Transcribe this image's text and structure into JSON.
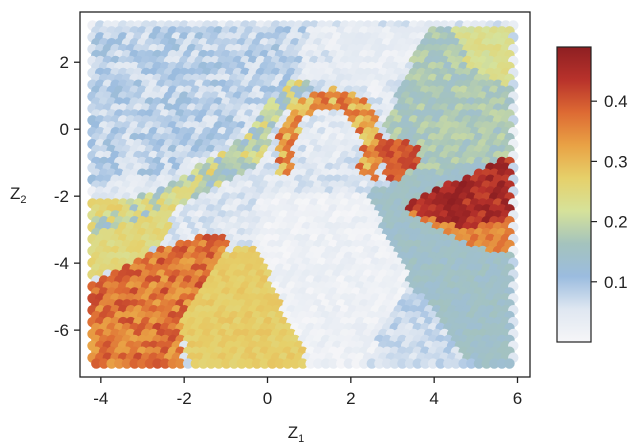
{
  "chart_data": {
    "type": "heatmap",
    "xlabel": "Z",
    "xlabel_sub": "1",
    "ylabel": "Z",
    "ylabel_sub": "2",
    "xlim": [
      -4.5,
      6.3
    ],
    "ylim": [
      -7.4,
      3.5
    ],
    "xticks": [
      -4,
      -2,
      0,
      2,
      4,
      6
    ],
    "yticks": [
      2,
      0,
      -2,
      -4,
      -6
    ],
    "grid": false,
    "grid_extent": {
      "x": [
        -4.2,
        5.9
      ],
      "y": [
        -7.0,
        3.1
      ]
    },
    "colorbar": {
      "range": [
        0.0,
        0.49
      ],
      "ticks": [
        0.1,
        0.2,
        0.3,
        0.4
      ],
      "colors": [
        "#f6f6f8",
        "#dfe7f1",
        "#9bbcdf",
        "#a4c3bd",
        "#d6e29a",
        "#e6d06a",
        "#e9a245",
        "#dd6a33",
        "#b8322b",
        "#8e1f22"
      ]
    },
    "regions": [
      {
        "name": "top-left",
        "poly": [
          [
            -4.2,
            3.1
          ],
          [
            1.0,
            3.1
          ],
          [
            0.6,
            1.0
          ],
          [
            -0.5,
            0.0
          ],
          [
            -1.5,
            -0.8
          ],
          [
            -2.5,
            -1.4
          ],
          [
            -4.2,
            -1.6
          ]
        ],
        "value": 0.08,
        "noise": 0.04
      },
      {
        "name": "top-right",
        "poly": [
          [
            1.0,
            3.1
          ],
          [
            4.0,
            3.1
          ],
          [
            3.2,
            1.8
          ],
          [
            2.6,
            0.9
          ],
          [
            1.9,
            1.6
          ]
        ],
        "value": 0.03,
        "noise": 0.02
      },
      {
        "name": "right-upper",
        "poly": [
          [
            4.0,
            3.1
          ],
          [
            5.9,
            3.1
          ],
          [
            5.9,
            -1.2
          ],
          [
            4.5,
            -1.7
          ],
          [
            3.4,
            -1.9
          ],
          [
            2.8,
            0.0
          ],
          [
            3.4,
            1.8
          ]
        ],
        "value": 0.17,
        "noise": 0.03
      },
      {
        "name": "upper-right-yellow",
        "poly": [
          [
            4.3,
            3.1
          ],
          [
            5.9,
            3.1
          ],
          [
            5.9,
            1.2
          ],
          [
            4.9,
            1.8
          ]
        ],
        "value": 0.23,
        "noise": 0.02
      },
      {
        "name": "right-middle",
        "poly": [
          [
            2.3,
            -1.9
          ],
          [
            5.9,
            -0.8
          ],
          [
            5.9,
            -7.0
          ],
          [
            4.9,
            -7.0
          ],
          [
            4.1,
            -5.8
          ],
          [
            3.2,
            -4.2
          ],
          [
            2.6,
            -3.0
          ]
        ],
        "value": 0.145,
        "noise": 0.015
      },
      {
        "name": "center-white",
        "poly": [
          [
            -0.2,
            -2.0
          ],
          [
            2.4,
            -2.0
          ],
          [
            2.8,
            -3.0
          ],
          [
            3.4,
            -4.5
          ],
          [
            2.4,
            -7.0
          ],
          [
            1.0,
            -7.0
          ],
          [
            0.3,
            -5.2
          ],
          [
            -0.3,
            -3.5
          ]
        ],
        "value": 0.02,
        "noise": 0.02
      },
      {
        "name": "lower-right-blue",
        "poly": [
          [
            3.4,
            -4.5
          ],
          [
            4.1,
            -5.8
          ],
          [
            4.9,
            -7.0
          ],
          [
            2.4,
            -7.0
          ]
        ],
        "value": 0.07,
        "noise": 0.03
      },
      {
        "name": "bottom-center-yellow",
        "poly": [
          [
            -0.8,
            -3.5
          ],
          [
            -0.2,
            -3.5
          ],
          [
            0.3,
            -5.2
          ],
          [
            1.0,
            -7.0
          ],
          [
            -1.9,
            -7.0
          ],
          [
            -2.1,
            -5.6
          ]
        ],
        "value": 0.275,
        "noise": 0.015
      },
      {
        "name": "left-yellow",
        "poly": [
          [
            -4.2,
            -2.2
          ],
          [
            -2.2,
            -2.2
          ],
          [
            -2.4,
            -3.2
          ],
          [
            -3.3,
            -4.2
          ],
          [
            -4.2,
            -4.4
          ]
        ],
        "value": 0.25,
        "noise": 0.02
      },
      {
        "name": "left-orange",
        "poly": [
          [
            -4.2,
            -4.6
          ],
          [
            -2.6,
            -3.6
          ],
          [
            -1.5,
            -3.2
          ],
          [
            -0.9,
            -3.3
          ],
          [
            -2.0,
            -5.6
          ],
          [
            -2.0,
            -7.0
          ],
          [
            -4.2,
            -7.0
          ]
        ],
        "value": 0.37,
        "noise": 0.05
      },
      {
        "name": "left-band",
        "poly": [
          [
            -4.2,
            -3.2
          ],
          [
            -1.5,
            -2.0
          ],
          [
            -0.3,
            -1.2
          ],
          [
            0.4,
            0.4
          ],
          [
            1.2,
            1.3
          ],
          [
            0.5,
            1.4
          ],
          [
            -0.7,
            -0.4
          ],
          [
            -2.2,
            -1.6
          ],
          [
            -4.2,
            -2.6
          ]
        ],
        "value": 0.2,
        "noise": 0.08
      },
      {
        "name": "ring",
        "poly": [
          [
            0.2,
            -1.4
          ],
          [
            0.3,
            0.0
          ],
          [
            0.8,
            0.9
          ],
          [
            1.6,
            1.2
          ],
          [
            2.4,
            0.8
          ],
          [
            2.8,
            -0.3
          ],
          [
            2.6,
            -1.6
          ],
          [
            2.2,
            -1.4
          ],
          [
            2.3,
            -0.3
          ],
          [
            1.9,
            0.5
          ],
          [
            1.4,
            0.6
          ],
          [
            0.9,
            0.3
          ],
          [
            0.6,
            -0.6
          ],
          [
            0.7,
            -1.3
          ]
        ],
        "value": 0.33,
        "noise": 0.07
      },
      {
        "name": "ring-inner",
        "poly": [
          [
            0.9,
            -0.8
          ],
          [
            1.0,
            0.2
          ],
          [
            1.5,
            0.45
          ],
          [
            2.0,
            0.2
          ],
          [
            2.1,
            -0.7
          ],
          [
            1.5,
            -1.0
          ]
        ],
        "value": 0.04,
        "noise": 0.03
      },
      {
        "name": "orange-patch",
        "poly": [
          [
            2.6,
            -0.2
          ],
          [
            3.7,
            -0.5
          ],
          [
            3.6,
            -1.1
          ],
          [
            2.9,
            -1.8
          ]
        ],
        "value": 0.4,
        "noise": 0.03
      },
      {
        "name": "right-red-band",
        "poly": [
          [
            3.2,
            -2.3
          ],
          [
            5.9,
            -0.8
          ],
          [
            5.9,
            -2.7
          ],
          [
            4.7,
            -3.0
          ],
          [
            3.4,
            -2.5
          ]
        ],
        "value": 0.45,
        "noise": 0.04
      },
      {
        "name": "right-orange-band",
        "poly": [
          [
            3.4,
            -2.5
          ],
          [
            4.7,
            -3.0
          ],
          [
            5.9,
            -2.7
          ],
          [
            5.9,
            -3.8
          ],
          [
            4.8,
            -3.5
          ]
        ],
        "value": 0.36,
        "noise": 0.03
      }
    ]
  }
}
